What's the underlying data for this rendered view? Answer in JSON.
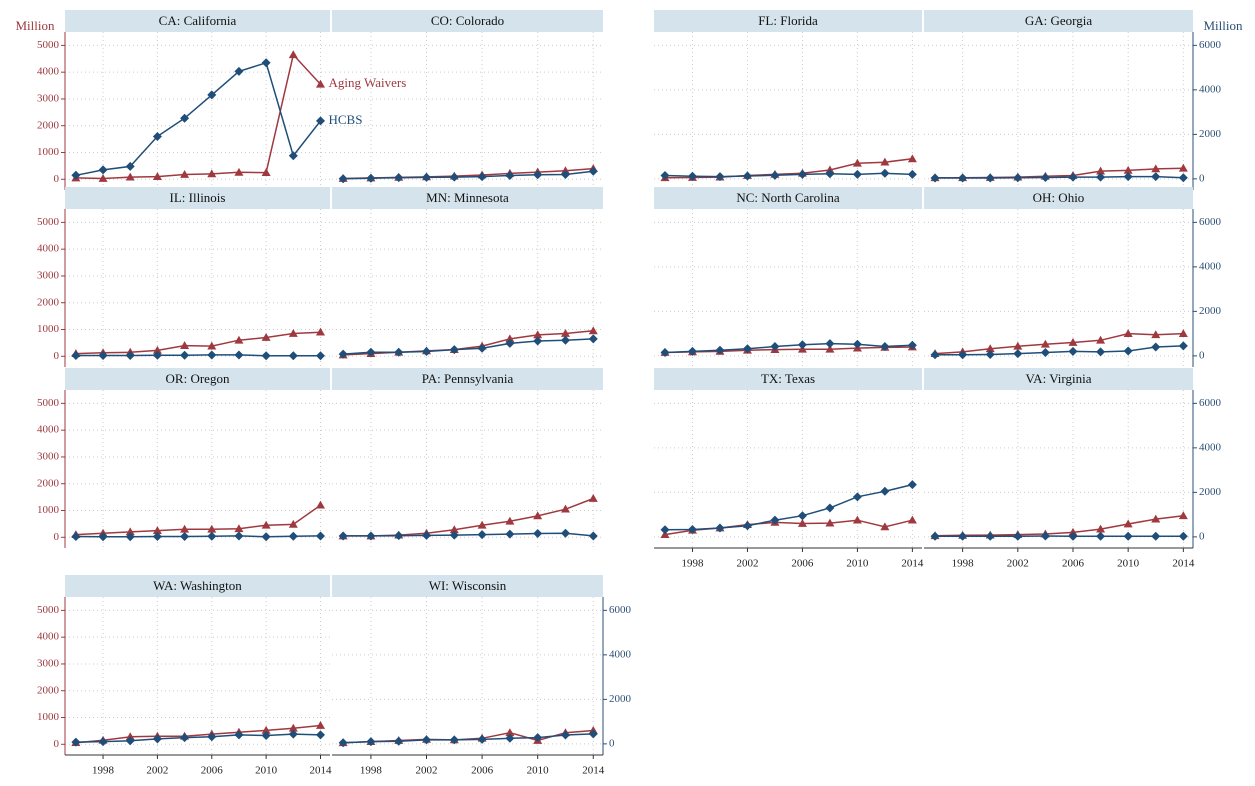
{
  "chart_data": [
    {
      "type": "line",
      "title": "CA: California",
      "ylabel": "Million",
      "x": [
        1996,
        1998,
        2000,
        2002,
        2004,
        2006,
        2008,
        2010,
        2012,
        2014
      ],
      "xlim": [
        1995.2,
        2014.7
      ],
      "xticks": [
        1998,
        2002,
        2006,
        2010,
        2014
      ],
      "ylim": [
        -400,
        5500
      ],
      "yticks": [
        0,
        1000,
        2000,
        3000,
        4000,
        5000
      ],
      "series": [
        {
          "name": "Aging Waivers",
          "color": "#a0393f",
          "marker": "triangle",
          "values": [
            50,
            30,
            80,
            100,
            180,
            200,
            260,
            250,
            4650,
            3550
          ]
        },
        {
          "name": "HCBS",
          "color": "#1f4e79",
          "marker": "diamond",
          "values": [
            150,
            350,
            480,
            1600,
            2280,
            3150,
            4030,
            4350,
            880,
            2180
          ]
        }
      ]
    },
    {
      "type": "line",
      "title": "CO: Colorado",
      "x": [
        1996,
        1998,
        2000,
        2002,
        2004,
        2006,
        2008,
        2010,
        2012,
        2014
      ],
      "xlim": [
        1995.2,
        2014.7
      ],
      "xticks": [
        1998,
        2002,
        2006,
        2010,
        2014
      ],
      "ylim": [
        -400,
        5500
      ],
      "yticks": [
        0,
        1000,
        2000,
        3000,
        4000,
        5000
      ],
      "series": [
        {
          "color": "#a0393f",
          "marker": "triangle",
          "values": [
            30,
            50,
            70,
            90,
            120,
            160,
            220,
            270,
            320,
            400
          ]
        },
        {
          "color": "#1f4e79",
          "marker": "diamond",
          "values": [
            20,
            40,
            60,
            70,
            80,
            100,
            140,
            170,
            180,
            300
          ]
        }
      ]
    },
    {
      "type": "line",
      "title": "FL: Florida",
      "x": [
        1996,
        1998,
        2000,
        2002,
        2004,
        2006,
        2008,
        2010,
        2012,
        2014
      ],
      "xlim": [
        1995.2,
        2014.7
      ],
      "xticks": [
        1998,
        2002,
        2006,
        2010,
        2014
      ],
      "ylim": [
        -500,
        6600
      ],
      "yticks": [
        0,
        2000,
        4000,
        6000
      ],
      "series": [
        {
          "color": "#a0393f",
          "marker": "triangle",
          "values": [
            50,
            60,
            80,
            150,
            200,
            250,
            400,
            700,
            750,
            900
          ]
        },
        {
          "color": "#1f4e79",
          "marker": "diamond",
          "values": [
            150,
            120,
            100,
            130,
            160,
            200,
            230,
            200,
            250,
            200
          ]
        }
      ]
    },
    {
      "type": "line",
      "title": "GA: Georgia",
      "ylabel": "Million",
      "x": [
        1996,
        1998,
        2000,
        2002,
        2004,
        2006,
        2008,
        2010,
        2012,
        2014
      ],
      "xlim": [
        1995.2,
        2014.7
      ],
      "xticks": [
        1998,
        2002,
        2006,
        2010,
        2014
      ],
      "ylim": [
        -500,
        6600
      ],
      "yticks": [
        0,
        2000,
        4000,
        6000
      ],
      "series": [
        {
          "color": "#a0393f",
          "marker": "triangle",
          "values": [
            50,
            50,
            60,
            80,
            120,
            150,
            350,
            380,
            450,
            480
          ]
        },
        {
          "color": "#1f4e79",
          "marker": "diamond",
          "values": [
            40,
            40,
            40,
            50,
            60,
            80,
            80,
            100,
            100,
            50
          ]
        }
      ]
    },
    {
      "type": "line",
      "title": "IL: Illinois",
      "x": [
        1996,
        1998,
        2000,
        2002,
        2004,
        2006,
        2008,
        2010,
        2012,
        2014
      ],
      "xlim": [
        1995.2,
        2014.7
      ],
      "xticks": [
        1998,
        2002,
        2006,
        2010,
        2014
      ],
      "ylim": [
        -400,
        5500
      ],
      "yticks": [
        0,
        1000,
        2000,
        3000,
        4000,
        5000
      ],
      "series": [
        {
          "color": "#a0393f",
          "marker": "triangle",
          "values": [
            100,
            130,
            150,
            220,
            400,
            380,
            600,
            700,
            850,
            900
          ]
        },
        {
          "color": "#1f4e79",
          "marker": "diamond",
          "values": [
            30,
            30,
            30,
            40,
            40,
            50,
            50,
            20,
            20,
            20
          ]
        }
      ]
    },
    {
      "type": "line",
      "title": "MN: Minnesota",
      "x": [
        1996,
        1998,
        2000,
        2002,
        2004,
        2006,
        2008,
        2010,
        2012,
        2014
      ],
      "xlim": [
        1995.2,
        2014.7
      ],
      "xticks": [
        1998,
        2002,
        2006,
        2010,
        2014
      ],
      "ylim": [
        -400,
        5500
      ],
      "yticks": [
        0,
        1000,
        2000,
        3000,
        4000,
        5000
      ],
      "series": [
        {
          "color": "#a0393f",
          "marker": "triangle",
          "values": [
            50,
            100,
            150,
            200,
            250,
            380,
            650,
            800,
            850,
            950
          ]
        },
        {
          "color": "#1f4e79",
          "marker": "diamond",
          "values": [
            80,
            150,
            150,
            180,
            250,
            300,
            480,
            570,
            600,
            650
          ]
        }
      ]
    },
    {
      "type": "line",
      "title": "NC: North Carolina",
      "x": [
        1996,
        1998,
        2000,
        2002,
        2004,
        2006,
        2008,
        2010,
        2012,
        2014
      ],
      "xlim": [
        1995.2,
        2014.7
      ],
      "xticks": [
        1998,
        2002,
        2006,
        2010,
        2014
      ],
      "ylim": [
        -500,
        6600
      ],
      "yticks": [
        0,
        2000,
        4000,
        6000
      ],
      "series": [
        {
          "color": "#a0393f",
          "marker": "triangle",
          "values": [
            150,
            180,
            200,
            250,
            280,
            300,
            300,
            350,
            380,
            400
          ]
        },
        {
          "color": "#1f4e79",
          "marker": "diamond",
          "values": [
            150,
            200,
            250,
            320,
            420,
            500,
            550,
            520,
            420,
            480
          ]
        }
      ]
    },
    {
      "type": "line",
      "title": "OH: Ohio",
      "x": [
        1996,
        1998,
        2000,
        2002,
        2004,
        2006,
        2008,
        2010,
        2012,
        2014
      ],
      "xlim": [
        1995.2,
        2014.7
      ],
      "xticks": [
        1998,
        2002,
        2006,
        2010,
        2014
      ],
      "ylim": [
        -500,
        6600
      ],
      "yticks": [
        0,
        2000,
        4000,
        6000
      ],
      "series": [
        {
          "color": "#a0393f",
          "marker": "triangle",
          "values": [
            100,
            180,
            320,
            430,
            520,
            600,
            700,
            1000,
            950,
            1000
          ]
        },
        {
          "color": "#1f4e79",
          "marker": "diamond",
          "values": [
            50,
            50,
            60,
            100,
            150,
            200,
            180,
            220,
            400,
            450
          ]
        }
      ]
    },
    {
      "type": "line",
      "title": "OR: Oregon",
      "x": [
        1996,
        1998,
        2000,
        2002,
        2004,
        2006,
        2008,
        2010,
        2012,
        2014
      ],
      "xlim": [
        1995.2,
        2014.7
      ],
      "xticks": [
        1998,
        2002,
        2006,
        2010,
        2014
      ],
      "ylim": [
        -400,
        5500
      ],
      "yticks": [
        0,
        1000,
        2000,
        3000,
        4000,
        5000
      ],
      "series": [
        {
          "color": "#a0393f",
          "marker": "triangle",
          "values": [
            100,
            150,
            200,
            250,
            300,
            300,
            320,
            450,
            480,
            1200
          ]
        },
        {
          "color": "#1f4e79",
          "marker": "diamond",
          "values": [
            30,
            20,
            20,
            30,
            30,
            40,
            50,
            20,
            40,
            50
          ]
        }
      ]
    },
    {
      "type": "line",
      "title": "PA: Pennsylvania",
      "x": [
        1996,
        1998,
        2000,
        2002,
        2004,
        2006,
        2008,
        2010,
        2012,
        2014
      ],
      "xlim": [
        1995.2,
        2014.7
      ],
      "xticks": [
        1998,
        2002,
        2006,
        2010,
        2014
      ],
      "ylim": [
        -400,
        5500
      ],
      "yticks": [
        0,
        1000,
        2000,
        3000,
        4000,
        5000
      ],
      "series": [
        {
          "color": "#a0393f",
          "marker": "triangle",
          "values": [
            50,
            50,
            80,
            150,
            280,
            450,
            600,
            800,
            1050,
            1450
          ]
        },
        {
          "color": "#1f4e79",
          "marker": "diamond",
          "values": [
            50,
            50,
            60,
            70,
            80,
            100,
            120,
            140,
            150,
            50
          ]
        }
      ]
    },
    {
      "type": "line",
      "title": "TX: Texas",
      "x": [
        1996,
        1998,
        2000,
        2002,
        2004,
        2006,
        2008,
        2010,
        2012,
        2014
      ],
      "xlim": [
        1995.2,
        2014.7
      ],
      "xticks": [
        1998,
        2002,
        2006,
        2010,
        2014
      ],
      "ylim": [
        -500,
        6600
      ],
      "yticks": [
        0,
        2000,
        4000,
        6000
      ],
      "series": [
        {
          "color": "#a0393f",
          "marker": "triangle",
          "values": [
            100,
            300,
            400,
            550,
            650,
            600,
            620,
            750,
            450,
            750
          ]
        },
        {
          "color": "#1f4e79",
          "marker": "diamond",
          "values": [
            320,
            330,
            400,
            500,
            750,
            950,
            1300,
            1800,
            2050,
            2350
          ]
        }
      ]
    },
    {
      "type": "line",
      "title": "VA: Virginia",
      "x": [
        1996,
        1998,
        2000,
        2002,
        2004,
        2006,
        2008,
        2010,
        2012,
        2014
      ],
      "xlim": [
        1995.2,
        2014.7
      ],
      "xticks": [
        1998,
        2002,
        2006,
        2010,
        2014
      ],
      "ylim": [
        -500,
        6600
      ],
      "yticks": [
        0,
        2000,
        4000,
        6000
      ],
      "series": [
        {
          "color": "#a0393f",
          "marker": "triangle",
          "values": [
            50,
            70,
            80,
            100,
            130,
            200,
            350,
            580,
            800,
            950
          ]
        },
        {
          "color": "#1f4e79",
          "marker": "diamond",
          "values": [
            30,
            30,
            30,
            30,
            40,
            30,
            30,
            30,
            30,
            30
          ]
        }
      ]
    },
    {
      "type": "line",
      "title": "WA: Washington",
      "x": [
        1996,
        1998,
        2000,
        2002,
        2004,
        2006,
        2008,
        2010,
        2012,
        2014
      ],
      "xlim": [
        1995.2,
        2014.7
      ],
      "xticks": [
        1998,
        2002,
        2006,
        2010,
        2014
      ],
      "ylim": [
        -400,
        5500
      ],
      "yticks": [
        0,
        1000,
        2000,
        3000,
        4000,
        5000
      ],
      "series": [
        {
          "color": "#a0393f",
          "marker": "triangle",
          "values": [
            60,
            150,
            280,
            300,
            300,
            380,
            450,
            520,
            600,
            700
          ]
        },
        {
          "color": "#1f4e79",
          "marker": "diamond",
          "values": [
            80,
            100,
            130,
            200,
            250,
            280,
            350,
            330,
            380,
            350
          ]
        }
      ]
    },
    {
      "type": "line",
      "title": "WI: Wisconsin",
      "x": [
        1996,
        1998,
        2000,
        2002,
        2004,
        2006,
        2008,
        2010,
        2012,
        2014
      ],
      "xlim": [
        1995.2,
        2014.7
      ],
      "xticks": [
        1998,
        2002,
        2006,
        2010,
        2014
      ],
      "ylim": [
        -500,
        6600
      ],
      "yticks": [
        0,
        2000,
        4000,
        6000
      ],
      "series": [
        {
          "color": "#a0393f",
          "marker": "triangle",
          "values": [
            50,
            100,
            150,
            200,
            180,
            250,
            500,
            150,
            500,
            600
          ]
        },
        {
          "color": "#1f4e79",
          "marker": "diamond",
          "values": [
            50,
            100,
            120,
            180,
            180,
            200,
            250,
            280,
            400,
            450
          ]
        }
      ]
    }
  ]
}
